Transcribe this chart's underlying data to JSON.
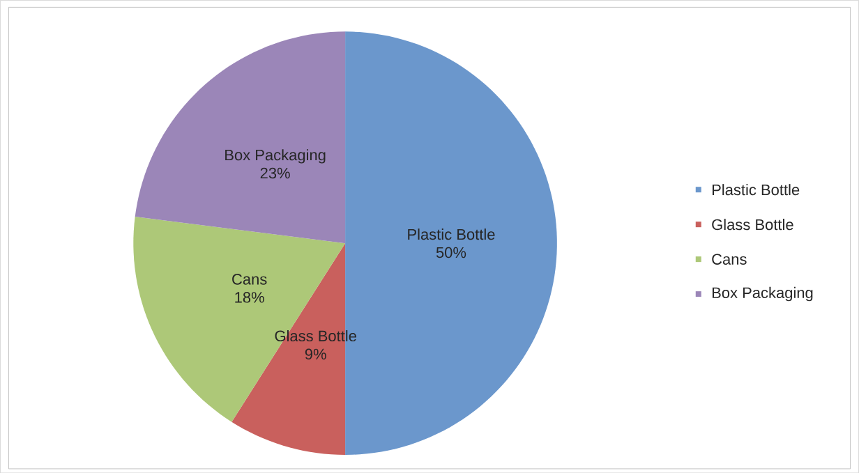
{
  "chart_data": {
    "type": "pie",
    "categories": [
      "Plastic Bottle",
      "Glass Bottle",
      "Cans",
      "Box Packaging"
    ],
    "values": [
      50,
      9,
      18,
      23
    ],
    "value_labels": [
      "50%",
      "9%",
      "18%",
      "23%"
    ],
    "colors": [
      "#6b97cc",
      "#c9605d",
      "#adc878",
      "#9b86b8"
    ],
    "legend": "right"
  }
}
